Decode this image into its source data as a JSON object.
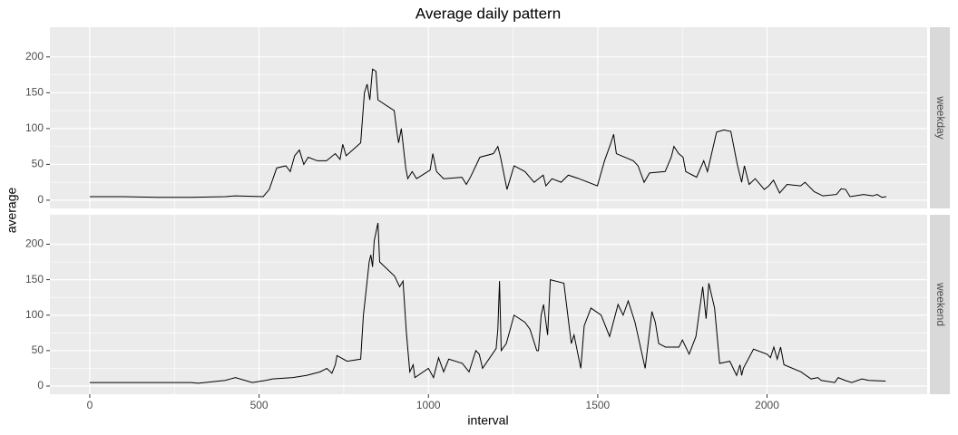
{
  "chart_data": {
    "type": "line",
    "title": "Average daily pattern",
    "x_label": "interval",
    "y_label": "average",
    "facet": true,
    "grid": true,
    "xlim": [
      -117.75,
      2472.75
    ],
    "xticks": [
      0,
      500,
      1000,
      1500,
      2000
    ],
    "ylim": [
      -11.5,
      241.5
    ],
    "yticks": [
      0,
      50,
      100,
      150,
      200
    ],
    "series": [
      {
        "name": "weekday",
        "color": "#000000",
        "x": [
          0,
          100,
          200,
          300,
          400,
          430,
          512,
          530,
          552,
          579,
          592,
          605,
          619,
          632,
          645,
          672,
          699,
          725,
          739,
          747,
          757,
          800,
          811,
          819,
          827,
          835,
          845,
          851,
          899,
          907,
          912,
          920,
          933,
          939,
          952,
          965,
          1005,
          1013,
          1024,
          1045,
          1099,
          1112,
          1125,
          1152,
          1192,
          1205,
          1213,
          1232,
          1253,
          1285,
          1312,
          1339,
          1347,
          1365,
          1392,
          1413,
          1445,
          1499,
          1520,
          1539,
          1547,
          1555,
          1605,
          1619,
          1637,
          1653,
          1699,
          1717,
          1725,
          1739,
          1752,
          1760,
          1792,
          1813,
          1824,
          1851,
          1872,
          1893,
          1912,
          1925,
          1933,
          1947,
          1965,
          1992,
          2005,
          2019,
          2037,
          2059,
          2099,
          2112,
          2139,
          2165,
          2205,
          2219,
          2232,
          2245,
          2285,
          2312,
          2325,
          2339,
          2352
        ],
        "values": [
          5,
          5,
          4,
          4,
          5,
          6,
          5,
          15,
          45,
          48,
          40,
          62,
          70,
          50,
          60,
          55,
          55,
          65,
          57,
          78,
          62,
          80,
          150,
          162,
          140,
          183,
          180,
          140,
          125,
          95,
          80,
          100,
          45,
          30,
          40,
          30,
          42,
          65,
          40,
          30,
          32,
          22,
          33,
          60,
          65,
          75,
          60,
          15,
          48,
          40,
          25,
          35,
          20,
          30,
          25,
          35,
          30,
          20,
          55,
          80,
          92,
          65,
          55,
          48,
          25,
          38,
          40,
          60,
          75,
          65,
          60,
          40,
          32,
          55,
          40,
          95,
          98,
          96,
          50,
          25,
          48,
          22,
          30,
          15,
          20,
          28,
          10,
          22,
          20,
          25,
          12,
          6,
          8,
          16,
          15,
          5,
          8,
          6,
          8,
          4,
          5
        ]
      },
      {
        "name": "weekend",
        "color": "#000000",
        "x": [
          0,
          300,
          320,
          400,
          430,
          480,
          520,
          540,
          600,
          640,
          680,
          700,
          715,
          725,
          730,
          760,
          800,
          808,
          815,
          825,
          830,
          835,
          840,
          851,
          856,
          900,
          915,
          925,
          935,
          945,
          955,
          960,
          1000,
          1015,
          1030,
          1045,
          1060,
          1100,
          1120,
          1140,
          1150,
          1160,
          1200,
          1205,
          1210,
          1215,
          1230,
          1253,
          1285,
          1300,
          1320,
          1325,
          1333,
          1340,
          1352,
          1360,
          1400,
          1418,
          1422,
          1430,
          1450,
          1460,
          1480,
          1510,
          1535,
          1560,
          1575,
          1590,
          1610,
          1640,
          1660,
          1670,
          1680,
          1700,
          1740,
          1750,
          1770,
          1790,
          1810,
          1820,
          1828,
          1845,
          1860,
          1890,
          1910,
          1920,
          1925,
          1930,
          1960,
          2000,
          2010,
          2020,
          2030,
          2040,
          2050,
          2100,
          2130,
          2150,
          2160,
          2200,
          2210,
          2230,
          2250,
          2280,
          2300,
          2350
        ],
        "values": [
          5,
          5,
          4,
          8,
          12,
          5,
          8,
          10,
          12,
          15,
          20,
          25,
          18,
          30,
          43,
          35,
          38,
          100,
          130,
          175,
          185,
          168,
          205,
          230,
          175,
          155,
          140,
          148,
          75,
          20,
          30,
          12,
          25,
          12,
          40,
          20,
          38,
          32,
          20,
          50,
          45,
          25,
          53,
          80,
          148,
          50,
          60,
          100,
          90,
          80,
          50,
          50,
          100,
          115,
          72,
          150,
          145,
          75,
          60,
          72,
          25,
          85,
          110,
          100,
          70,
          115,
          100,
          120,
          90,
          25,
          105,
          90,
          60,
          55,
          55,
          65,
          45,
          70,
          140,
          95,
          145,
          110,
          32,
          35,
          15,
          30,
          15,
          25,
          52,
          45,
          40,
          55,
          38,
          55,
          30,
          20,
          10,
          12,
          8,
          5,
          12,
          8,
          5,
          10,
          8,
          7
        ]
      }
    ]
  }
}
